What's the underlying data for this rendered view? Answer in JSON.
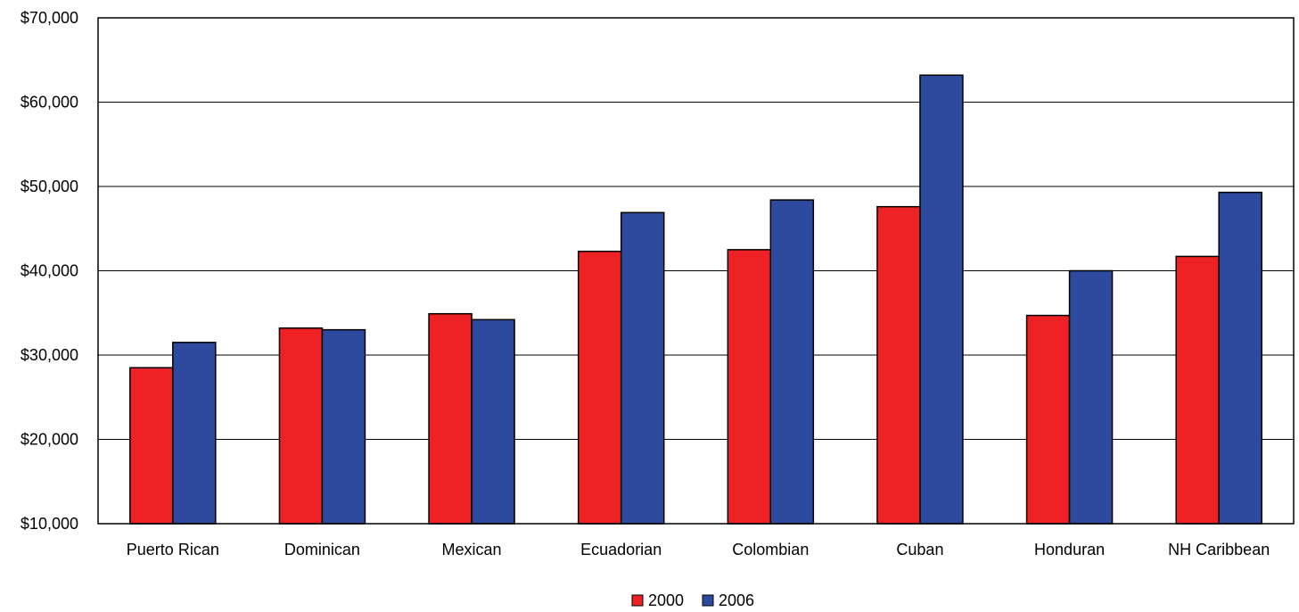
{
  "chart_data": {
    "type": "bar",
    "title": "",
    "xlabel": "",
    "ylabel": "",
    "categories": [
      "Puerto Rican",
      "Dominican",
      "Mexican",
      "Ecuadorian",
      "Colombian",
      "Cuban",
      "Honduran",
      "NH Caribbean"
    ],
    "series": [
      {
        "name": "2000",
        "color": "#ee2224",
        "values": [
          28500,
          33200,
          34900,
          42300,
          42500,
          47600,
          34700,
          41700
        ]
      },
      {
        "name": "2006",
        "color": "#2e4a9e",
        "values": [
          31500,
          33000,
          34200,
          46900,
          48400,
          63200,
          40000,
          49300
        ]
      }
    ],
    "ylim": [
      10000,
      70000
    ],
    "yticks": [
      10000,
      20000,
      30000,
      40000,
      50000,
      60000,
      70000
    ],
    "ytick_labels": [
      "$10,000",
      "$20,000",
      "$30,000",
      "$40,000",
      "$50,000",
      "$60,000",
      "$70,000"
    ],
    "grid": true,
    "legend_position": "bottom-center"
  }
}
